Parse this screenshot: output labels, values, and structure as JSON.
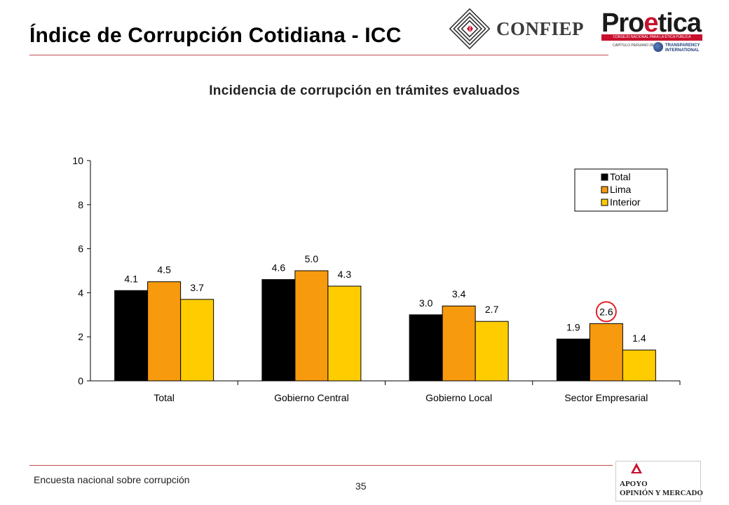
{
  "slide": {
    "title": "Índice de Corrupción Cotidiana - ICC",
    "footer_text": "Encuesta nacional sobre corrupción",
    "page_number": "35"
  },
  "logos": {
    "confiep": "CONFIEP",
    "proetica_prefix": "Pro",
    "proetica_accent": "e",
    "proetica_suffix": "tica",
    "proetica_band": "CONSEJO NACIONAL PARA LA ÉTICA PÚBLICA",
    "proetica_sub": "CAPÍTULO PERUANO DE",
    "ti_line1": "TRANSPARENCY",
    "ti_line2": "INTERNATIONAL",
    "apoyo_line1": "APOYO",
    "apoyo_line2": "OPINIÓN Y MERCADO"
  },
  "colors": {
    "total": "#000000",
    "lima": "#f79a0e",
    "interior": "#ffcc00",
    "highlight_circle": "#e8212b",
    "brand_red": "#c8102e"
  },
  "chart_data": {
    "type": "bar",
    "title": "Incidencia de corrupción en trámites evaluados",
    "xlabel": "",
    "ylabel": "",
    "ylim": [
      0,
      10
    ],
    "yticks": [
      0,
      2,
      4,
      6,
      8,
      10
    ],
    "categories": [
      "Total",
      "Gobierno Central",
      "Gobierno Local",
      "Sector Empresarial"
    ],
    "series": [
      {
        "name": "Total",
        "values": [
          4.1,
          4.6,
          3.0,
          1.9
        ],
        "labels": [
          "4.1",
          "4.6",
          "3.0",
          "1.9"
        ]
      },
      {
        "name": "Lima",
        "values": [
          4.5,
          5.0,
          3.4,
          2.6
        ],
        "labels": [
          "4.5",
          "5.0",
          "3.4",
          "2.6"
        ]
      },
      {
        "name": "Interior",
        "values": [
          3.7,
          4.3,
          2.7,
          1.4
        ],
        "labels": [
          "3.7",
          "4.3",
          "2.7",
          "1.4"
        ]
      }
    ],
    "legend": "top-right",
    "grid": false,
    "highlight": {
      "category": "Sector Empresarial",
      "series": "Lima"
    }
  }
}
